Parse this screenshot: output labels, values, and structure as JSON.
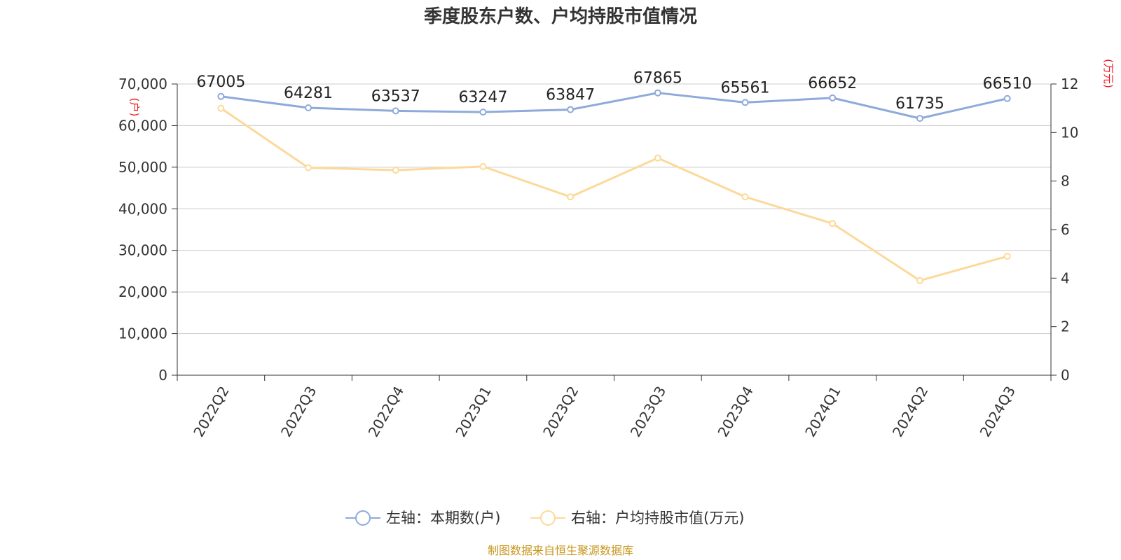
{
  "chart_data": {
    "type": "line",
    "title": "季度股东户数、户均持股市值情况",
    "categories": [
      "2022Q2",
      "2022Q3",
      "2022Q4",
      "2023Q1",
      "2023Q2",
      "2023Q3",
      "2023Q4",
      "2024Q1",
      "2024Q2",
      "2024Q3"
    ],
    "series": [
      {
        "name": "左轴：本期数(户)",
        "axis": "left",
        "color": "#8eaadb",
        "values": [
          67005,
          64281,
          63537,
          63247,
          63847,
          67865,
          65561,
          66652,
          61735,
          66510
        ],
        "labels": [
          "67005",
          "64281",
          "63537",
          "63247",
          "63847",
          "67865",
          "65561",
          "66652",
          "61735",
          "66510"
        ]
      },
      {
        "name": "右轴：户均持股市值(万元)",
        "axis": "right",
        "color": "#fcd99a",
        "values": [
          11.0,
          8.55,
          8.45,
          8.6,
          7.35,
          8.95,
          7.35,
          6.25,
          3.9,
          4.9
        ]
      }
    ],
    "left_axis": {
      "unit": "(户)",
      "ylim": [
        0,
        70000
      ],
      "ticks": [
        0,
        10000,
        20000,
        30000,
        40000,
        50000,
        60000,
        70000
      ],
      "tick_labels": [
        "0",
        "10,000",
        "20,000",
        "30,000",
        "40,000",
        "50,000",
        "60,000",
        "70,000"
      ]
    },
    "right_axis": {
      "unit": "(万元)",
      "ylim": [
        0,
        12
      ],
      "ticks": [
        0,
        2,
        4,
        6,
        8,
        10,
        12
      ],
      "tick_labels": [
        "0",
        "2",
        "4",
        "6",
        "8",
        "10",
        "12"
      ]
    },
    "grid": true,
    "legend_position": "bottom-center"
  },
  "source": "制图数据来自恒生聚源数据库"
}
